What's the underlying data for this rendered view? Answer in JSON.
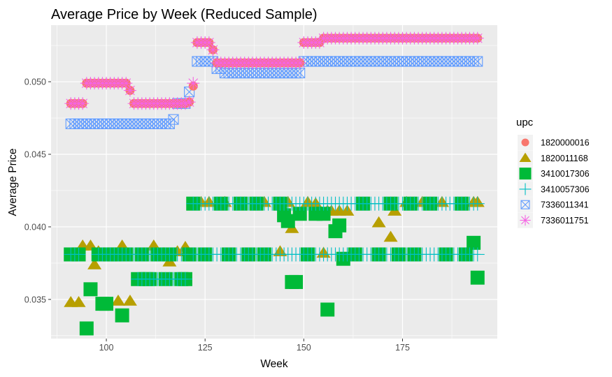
{
  "chart_data": {
    "type": "scatter",
    "title": "Average Price by Week (Reduced Sample)",
    "xlabel": "Week",
    "ylabel": "Average Price",
    "xlim": [
      86,
      199
    ],
    "ylim": [
      0.0323,
      0.0539
    ],
    "xticks": [
      100,
      125,
      150,
      175
    ],
    "xtick_labels": [
      "100",
      "125",
      "150",
      "175"
    ],
    "yticks": [
      0.035,
      0.04,
      0.045,
      0.05
    ],
    "ytick_labels": [
      "0.035",
      "0.040",
      "0.045",
      "0.050"
    ],
    "grid": true,
    "legend_title": "upc",
    "legend_position": "right",
    "series": [
      {
        "name": "1820000016",
        "color": "#F8766D",
        "shape": "circle",
        "runs": [
          [
            91,
            94,
            0.0485
          ],
          [
            95,
            105,
            0.0499
          ],
          [
            106,
            106,
            0.0494
          ],
          [
            107,
            120,
            0.0485
          ],
          [
            121,
            121,
            0.0486
          ],
          [
            122,
            122,
            0.0497
          ],
          [
            123,
            126,
            0.0527
          ],
          [
            127,
            127,
            0.0522
          ],
          [
            128,
            149,
            0.0513
          ],
          [
            150,
            154,
            0.0527
          ],
          [
            155,
            194,
            0.053
          ]
        ]
      },
      {
        "name": "1820011168",
        "color": "#B79F00",
        "shape": "triangle",
        "points": [
          [
            91,
            0.0348
          ],
          [
            93,
            0.0348
          ],
          [
            94,
            0.0387
          ],
          [
            96,
            0.0387
          ],
          [
            97,
            0.0374
          ],
          [
            98,
            0.0383
          ],
          [
            103,
            0.0349
          ],
          [
            104,
            0.0387
          ],
          [
            106,
            0.0349
          ],
          [
            112,
            0.0387
          ],
          [
            116,
            0.0376
          ],
          [
            118,
            0.0383
          ],
          [
            120,
            0.0386
          ],
          [
            124,
            0.0417
          ],
          [
            126,
            0.0417
          ],
          [
            130,
            0.0417
          ],
          [
            140,
            0.0417
          ],
          [
            144,
            0.0383
          ],
          [
            146,
            0.0417
          ],
          [
            147,
            0.0399
          ],
          [
            151,
            0.0417
          ],
          [
            153,
            0.0416
          ],
          [
            155,
            0.0382
          ],
          [
            156,
            0.0411
          ],
          [
            157,
            0.0411
          ],
          [
            159,
            0.0411
          ],
          [
            161,
            0.0411
          ],
          [
            169,
            0.0403
          ],
          [
            172,
            0.0393
          ],
          [
            173,
            0.0411
          ],
          [
            176,
            0.0417
          ],
          [
            180,
            0.0417
          ],
          [
            185,
            0.0417
          ],
          [
            193,
            0.0417
          ],
          [
            194,
            0.0417
          ]
        ]
      },
      {
        "name": "3410017306",
        "color": "#00BA38",
        "shape": "square",
        "points": [
          [
            91,
            0.0381
          ],
          [
            93,
            0.0381
          ],
          [
            95,
            0.033
          ],
          [
            96,
            0.0357
          ],
          [
            98,
            0.0381
          ],
          [
            99,
            0.0347
          ],
          [
            100,
            0.0347
          ],
          [
            101,
            0.0381
          ],
          [
            102,
            0.0381
          ],
          [
            104,
            0.0339
          ],
          [
            105,
            0.0381
          ],
          [
            108,
            0.0364
          ],
          [
            109,
            0.0381
          ],
          [
            110,
            0.0364
          ],
          [
            111,
            0.0364
          ],
          [
            113,
            0.0381
          ],
          [
            115,
            0.0364
          ],
          [
            116,
            0.0381
          ],
          [
            119,
            0.0364
          ],
          [
            120,
            0.0364
          ],
          [
            121,
            0.0381
          ],
          [
            122,
            0.0416
          ],
          [
            125,
            0.0381
          ],
          [
            129,
            0.0416
          ],
          [
            131,
            0.0381
          ],
          [
            134,
            0.0416
          ],
          [
            136,
            0.0381
          ],
          [
            138,
            0.0416
          ],
          [
            140,
            0.0381
          ],
          [
            144,
            0.0416
          ],
          [
            145,
            0.0408
          ],
          [
            146,
            0.0404
          ],
          [
            147,
            0.0362
          ],
          [
            148,
            0.0362
          ],
          [
            149,
            0.0409
          ],
          [
            151,
            0.0381
          ],
          [
            153,
            0.0409
          ],
          [
            155,
            0.0409
          ],
          [
            156,
            0.0343
          ],
          [
            158,
            0.0397
          ],
          [
            159,
            0.0401
          ],
          [
            160,
            0.0378
          ],
          [
            163,
            0.0381
          ],
          [
            165,
            0.0416
          ],
          [
            169,
            0.0381
          ],
          [
            172,
            0.0416
          ],
          [
            174,
            0.0381
          ],
          [
            177,
            0.0416
          ],
          [
            178,
            0.0381
          ],
          [
            182,
            0.0416
          ],
          [
            186,
            0.0381
          ],
          [
            190,
            0.0416
          ],
          [
            191,
            0.0381
          ],
          [
            193,
            0.0389
          ],
          [
            194,
            0.0365
          ]
        ]
      },
      {
        "name": "3410057306",
        "color": "#00BFC4",
        "shape": "plus",
        "runs": [
          [
            91,
            93,
            0.0381
          ],
          [
            98,
            120,
            0.0381
          ],
          [
            122,
            194,
            0.0381
          ],
          [
            122,
            194,
            0.0416
          ],
          [
            108,
            120,
            0.0364
          ]
        ]
      },
      {
        "name": "7336011341",
        "color": "#619CFF",
        "shape": "square-cross",
        "runs": [
          [
            91,
            116,
            0.0471
          ],
          [
            117,
            117,
            0.0474
          ],
          [
            118,
            120,
            0.0485
          ],
          [
            121,
            121,
            0.0493
          ],
          [
            123,
            127,
            0.0514
          ],
          [
            128,
            129,
            0.0509
          ],
          [
            130,
            149,
            0.0506
          ],
          [
            150,
            194,
            0.0514
          ]
        ]
      },
      {
        "name": "7336011751",
        "color": "#F564E3",
        "shape": "asterisk",
        "runs": [
          [
            91,
            94,
            0.0485
          ],
          [
            95,
            105,
            0.0499
          ],
          [
            106,
            106,
            0.0494
          ],
          [
            107,
            120,
            0.0485
          ],
          [
            121,
            121,
            0.0486
          ],
          [
            122,
            122,
            0.0499
          ],
          [
            123,
            126,
            0.0527
          ],
          [
            127,
            127,
            0.0522
          ],
          [
            128,
            149,
            0.0513
          ],
          [
            150,
            154,
            0.0527
          ],
          [
            155,
            194,
            0.053
          ]
        ]
      }
    ]
  }
}
